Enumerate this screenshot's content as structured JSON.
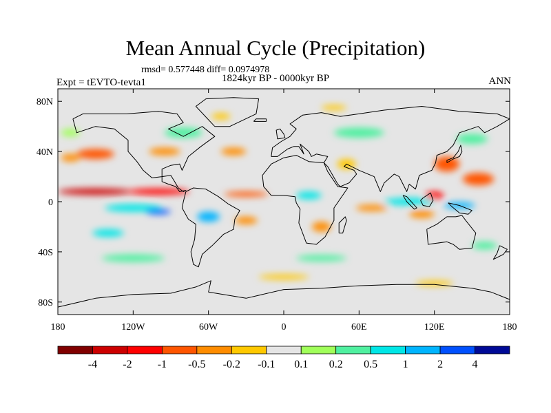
{
  "header": {
    "title": "Mean Annual Cycle (Precipitation)",
    "stats": "rmsd= 0.577448 diff= 0.0974978",
    "period": "1824kyr BP - 0000kyr BP",
    "experiment": "Expt = tEVTO-tevta1",
    "season": "ANN"
  },
  "map": {
    "lon_range": [
      -180,
      180
    ],
    "lat_range": [
      -90,
      90
    ],
    "ocean_background": "#e5e5e5",
    "x_ticks": [
      {
        "lon": -180,
        "label": "180"
      },
      {
        "lon": -120,
        "label": "120W"
      },
      {
        "lon": -60,
        "label": "60W"
      },
      {
        "lon": 0,
        "label": "0"
      },
      {
        "lon": 60,
        "label": "60E"
      },
      {
        "lon": 120,
        "label": "120E"
      },
      {
        "lon": 180,
        "label": "180"
      }
    ],
    "y_ticks": [
      {
        "lat": 80,
        "label": "80N"
      },
      {
        "lat": 40,
        "label": "40N"
      },
      {
        "lat": 0,
        "label": "0"
      },
      {
        "lat": -40,
        "label": "40S"
      },
      {
        "lat": -80,
        "label": "80S"
      }
    ],
    "field_blobs": [
      {
        "lon": -150,
        "lat": 8,
        "w": 60,
        "h": 5,
        "level": -5
      },
      {
        "lon": -100,
        "lat": 8,
        "w": 50,
        "h": 5,
        "level": -4
      },
      {
        "lon": -30,
        "lat": 6,
        "w": 35,
        "h": 4,
        "level": -3
      },
      {
        "lon": -150,
        "lat": 38,
        "w": 30,
        "h": 8,
        "level": -3
      },
      {
        "lon": -170,
        "lat": 35,
        "w": 15,
        "h": 6,
        "level": -2
      },
      {
        "lon": -95,
        "lat": 40,
        "w": 25,
        "h": 6,
        "level": -2
      },
      {
        "lon": -40,
        "lat": 40,
        "w": 20,
        "h": 6,
        "level": -2
      },
      {
        "lon": 130,
        "lat": 30,
        "w": 20,
        "h": 12,
        "level": -3
      },
      {
        "lon": 155,
        "lat": 18,
        "w": 25,
        "h": 10,
        "level": -3
      },
      {
        "lon": 120,
        "lat": 5,
        "w": 15,
        "h": 6,
        "level": -4
      },
      {
        "lon": 110,
        "lat": -10,
        "w": 20,
        "h": 6,
        "level": -2
      },
      {
        "lon": 70,
        "lat": -5,
        "w": 25,
        "h": 5,
        "level": -2
      },
      {
        "lon": 30,
        "lat": -20,
        "w": 15,
        "h": 8,
        "level": -2
      },
      {
        "lon": -30,
        "lat": -15,
        "w": 18,
        "h": 6,
        "level": -2
      },
      {
        "lon": 50,
        "lat": 30,
        "w": 15,
        "h": 8,
        "level": -1
      },
      {
        "lon": -50,
        "lat": 68,
        "w": 15,
        "h": 5,
        "level": -1
      },
      {
        "lon": 40,
        "lat": 75,
        "w": 20,
        "h": 4,
        "level": -1
      },
      {
        "lon": 0,
        "lat": -60,
        "w": 40,
        "h": 4,
        "level": -1
      },
      {
        "lon": 120,
        "lat": -65,
        "w": 30,
        "h": 4,
        "level": -1
      },
      {
        "lon": -120,
        "lat": -5,
        "w": 45,
        "h": 6,
        "level": 3
      },
      {
        "lon": -100,
        "lat": -8,
        "w": 20,
        "h": 4,
        "level": 5
      },
      {
        "lon": -60,
        "lat": -12,
        "w": 18,
        "h": 8,
        "level": 4
      },
      {
        "lon": -140,
        "lat": -25,
        "w": 25,
        "h": 6,
        "level": 3
      },
      {
        "lon": 100,
        "lat": 0,
        "w": 40,
        "h": 6,
        "level": 3
      },
      {
        "lon": 140,
        "lat": -3,
        "w": 25,
        "h": 5,
        "level": 4
      },
      {
        "lon": 20,
        "lat": 5,
        "w": 20,
        "h": 6,
        "level": 3
      },
      {
        "lon": -80,
        "lat": 55,
        "w": 30,
        "h": 8,
        "level": 2
      },
      {
        "lon": 60,
        "lat": 55,
        "w": 40,
        "h": 8,
        "level": 2
      },
      {
        "lon": 150,
        "lat": 50,
        "w": 25,
        "h": 8,
        "level": 2
      },
      {
        "lon": -120,
        "lat": -45,
        "w": 50,
        "h": 6,
        "level": 2
      },
      {
        "lon": 30,
        "lat": -45,
        "w": 40,
        "h": 5,
        "level": 2
      },
      {
        "lon": 160,
        "lat": -35,
        "w": 20,
        "h": 6,
        "level": 2
      },
      {
        "lon": -170,
        "lat": 55,
        "w": 15,
        "h": 6,
        "level": 1
      }
    ],
    "continents": [
      {
        "name": "north-america",
        "pts": [
          [
            -168,
            66
          ],
          [
            -160,
            70
          ],
          [
            -140,
            70
          ],
          [
            -125,
            70
          ],
          [
            -100,
            72
          ],
          [
            -85,
            70
          ],
          [
            -80,
            63
          ],
          [
            -92,
            58
          ],
          [
            -80,
            52
          ],
          [
            -65,
            60
          ],
          [
            -55,
            52
          ],
          [
            -66,
            44
          ],
          [
            -76,
            36
          ],
          [
            -81,
            25
          ],
          [
            -83,
            30
          ],
          [
            -90,
            29
          ],
          [
            -97,
            26
          ],
          [
            -97,
            20
          ],
          [
            -105,
            19
          ],
          [
            -112,
            25
          ],
          [
            -117,
            32
          ],
          [
            -124,
            40
          ],
          [
            -124,
            49
          ],
          [
            -135,
            58
          ],
          [
            -150,
            60
          ],
          [
            -165,
            55
          ],
          [
            -168,
            66
          ]
        ]
      },
      {
        "name": "central-america",
        "pts": [
          [
            -97,
            20
          ],
          [
            -90,
            21
          ],
          [
            -87,
            16
          ],
          [
            -84,
            11
          ],
          [
            -80,
            8
          ],
          [
            -78,
            9
          ],
          [
            -83,
            8
          ],
          [
            -86,
            12
          ],
          [
            -92,
            14
          ],
          [
            -97,
            16
          ],
          [
            -97,
            20
          ]
        ]
      },
      {
        "name": "south-america",
        "pts": [
          [
            -78,
            8
          ],
          [
            -72,
            11
          ],
          [
            -62,
            10
          ],
          [
            -52,
            4
          ],
          [
            -44,
            -2
          ],
          [
            -35,
            -7
          ],
          [
            -39,
            -14
          ],
          [
            -40,
            -22
          ],
          [
            -48,
            -26
          ],
          [
            -57,
            -35
          ],
          [
            -65,
            -42
          ],
          [
            -68,
            -52
          ],
          [
            -72,
            -50
          ],
          [
            -74,
            -40
          ],
          [
            -71,
            -30
          ],
          [
            -70,
            -18
          ],
          [
            -76,
            -14
          ],
          [
            -81,
            -5
          ],
          [
            -80,
            0
          ],
          [
            -78,
            8
          ]
        ]
      },
      {
        "name": "greenland",
        "pts": [
          [
            -55,
            60
          ],
          [
            -43,
            60
          ],
          [
            -22,
            70
          ],
          [
            -20,
            82
          ],
          [
            -40,
            83
          ],
          [
            -62,
            82
          ],
          [
            -70,
            76
          ],
          [
            -55,
            60
          ]
        ]
      },
      {
        "name": "eurasia",
        "pts": [
          [
            -10,
            36
          ],
          [
            -9,
            43
          ],
          [
            -2,
            48
          ],
          [
            5,
            52
          ],
          [
            10,
            58
          ],
          [
            5,
            62
          ],
          [
            15,
            69
          ],
          [
            30,
            71
          ],
          [
            45,
            68
          ],
          [
            60,
            70
          ],
          [
            80,
            73
          ],
          [
            110,
            76
          ],
          [
            140,
            72
          ],
          [
            170,
            70
          ],
          [
            180,
            66
          ],
          [
            170,
            60
          ],
          [
            160,
            55
          ],
          [
            155,
            60
          ],
          [
            140,
            55
          ],
          [
            135,
            45
          ],
          [
            130,
            40
          ],
          [
            122,
            37
          ],
          [
            121,
            31
          ],
          [
            118,
            25
          ],
          [
            108,
            21
          ],
          [
            105,
            10
          ],
          [
            100,
            14
          ],
          [
            98,
            8
          ],
          [
            92,
            20
          ],
          [
            88,
            22
          ],
          [
            80,
            15
          ],
          [
            77,
            8
          ],
          [
            72,
            20
          ],
          [
            60,
            25
          ],
          [
            50,
            30
          ],
          [
            48,
            28
          ],
          [
            56,
            25
          ],
          [
            58,
            22
          ],
          [
            52,
            15
          ],
          [
            45,
            12
          ],
          [
            43,
            14
          ],
          [
            35,
            28
          ],
          [
            32,
            31
          ],
          [
            35,
            36
          ],
          [
            26,
            38
          ],
          [
            22,
            36
          ],
          [
            20,
            40
          ],
          [
            13,
            46
          ],
          [
            16,
            38
          ],
          [
            12,
            44
          ],
          [
            8,
            44
          ],
          [
            3,
            42
          ],
          [
            -5,
            36
          ],
          [
            -10,
            36
          ]
        ]
      },
      {
        "name": "africa",
        "pts": [
          [
            -17,
            21
          ],
          [
            -16,
            12
          ],
          [
            -10,
            5
          ],
          [
            0,
            5
          ],
          [
            9,
            4
          ],
          [
            10,
            -1
          ],
          [
            13,
            -6
          ],
          [
            12,
            -17
          ],
          [
            18,
            -33
          ],
          [
            26,
            -34
          ],
          [
            33,
            -28
          ],
          [
            40,
            -15
          ],
          [
            40,
            -5
          ],
          [
            51,
            11
          ],
          [
            43,
            12
          ],
          [
            35,
            24
          ],
          [
            32,
            31
          ],
          [
            20,
            32
          ],
          [
            10,
            37
          ],
          [
            0,
            35
          ],
          [
            -10,
            30
          ],
          [
            -17,
            21
          ]
        ]
      },
      {
        "name": "madagascar",
        "pts": [
          [
            44,
            -25
          ],
          [
            47,
            -25
          ],
          [
            50,
            -15
          ],
          [
            49,
            -12
          ],
          [
            44,
            -17
          ],
          [
            44,
            -25
          ]
        ]
      },
      {
        "name": "australia",
        "pts": [
          [
            114,
            -22
          ],
          [
            122,
            -18
          ],
          [
            130,
            -12
          ],
          [
            137,
            -12
          ],
          [
            142,
            -11
          ],
          [
            145,
            -15
          ],
          [
            153,
            -25
          ],
          [
            150,
            -37
          ],
          [
            140,
            -38
          ],
          [
            135,
            -34
          ],
          [
            130,
            -32
          ],
          [
            115,
            -34
          ],
          [
            114,
            -22
          ]
        ]
      },
      {
        "name": "antarctica",
        "pts": [
          [
            -180,
            -84
          ],
          [
            -150,
            -77
          ],
          [
            -120,
            -74
          ],
          [
            -90,
            -73
          ],
          [
            -70,
            -68
          ],
          [
            -58,
            -63
          ],
          [
            -60,
            -72
          ],
          [
            -30,
            -77
          ],
          [
            0,
            -70
          ],
          [
            30,
            -69
          ],
          [
            60,
            -67
          ],
          [
            90,
            -66
          ],
          [
            120,
            -66
          ],
          [
            150,
            -69
          ],
          [
            165,
            -72
          ],
          [
            180,
            -78
          ]
        ]
      },
      {
        "name": "borneo",
        "pts": [
          [
            109,
            1
          ],
          [
            111,
            -3
          ],
          [
            116,
            -4
          ],
          [
            119,
            1
          ],
          [
            117,
            7
          ],
          [
            111,
            3
          ],
          [
            109,
            1
          ]
        ]
      },
      {
        "name": "sumatra",
        "pts": [
          [
            95,
            5
          ],
          [
            98,
            4
          ],
          [
            106,
            -5
          ],
          [
            104,
            -6
          ],
          [
            98,
            0
          ],
          [
            95,
            5
          ]
        ]
      },
      {
        "name": "new-guinea",
        "pts": [
          [
            131,
            -1
          ],
          [
            140,
            -3
          ],
          [
            150,
            -7
          ],
          [
            147,
            -10
          ],
          [
            140,
            -9
          ],
          [
            134,
            -4
          ],
          [
            131,
            -1
          ]
        ]
      },
      {
        "name": "japan",
        "pts": [
          [
            130,
            31
          ],
          [
            135,
            34
          ],
          [
            140,
            36
          ],
          [
            142,
            40
          ],
          [
            141,
            45
          ],
          [
            139,
            40
          ],
          [
            135,
            35
          ],
          [
            130,
            33
          ],
          [
            130,
            31
          ]
        ]
      },
      {
        "name": "uk",
        "pts": [
          [
            -5,
            50
          ],
          [
            1,
            51
          ],
          [
            0,
            54
          ],
          [
            -3,
            58
          ],
          [
            -6,
            57
          ],
          [
            -5,
            50
          ]
        ]
      },
      {
        "name": "new-zealand",
        "pts": [
          [
            172,
            -35
          ],
          [
            178,
            -38
          ],
          [
            175,
            -42
          ],
          [
            167,
            -46
          ],
          [
            170,
            -41
          ],
          [
            172,
            -35
          ]
        ]
      },
      {
        "name": "iceland",
        "pts": [
          [
            -24,
            64
          ],
          [
            -14,
            64
          ],
          [
            -14,
            66
          ],
          [
            -22,
            66
          ],
          [
            -24,
            64
          ]
        ]
      }
    ]
  },
  "colorbar": {
    "colors": [
      "#800000",
      "#cc0000",
      "#ff0000",
      "#ff5500",
      "#ff8c00",
      "#ffc800",
      "#e5e5e5",
      "#a0ff5a",
      "#50f0a0",
      "#00e6e6",
      "#00b4ff",
      "#0050ff",
      "#000a96"
    ],
    "labels": [
      "-4",
      "-2",
      "-1",
      "-0.5",
      "-0.2",
      "-0.1",
      "0.1",
      "0.2",
      "0.5",
      "1",
      "2",
      "4"
    ]
  }
}
